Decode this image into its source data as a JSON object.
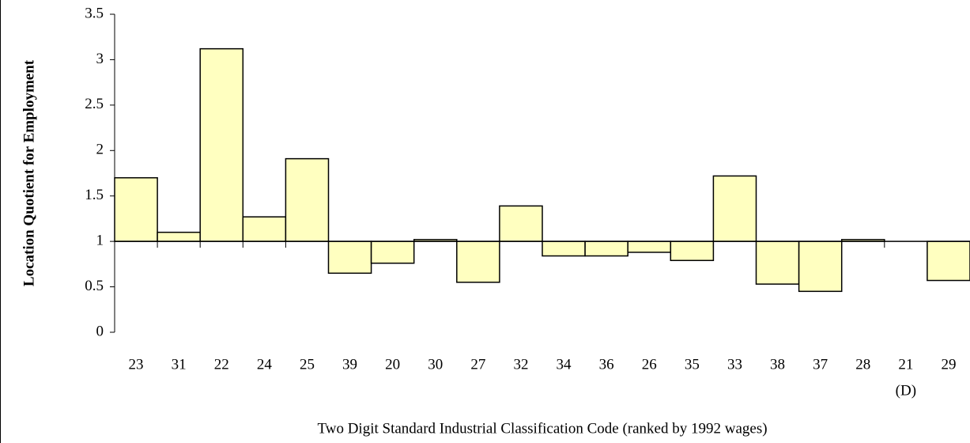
{
  "chart_data": {
    "type": "bar",
    "x_label": "Two Digit Standard Industrial Classification Code (ranked by 1992 wages)",
    "y_label": "Location Quotient for Employment",
    "categories": [
      "23",
      "31",
      "22",
      "24",
      "25",
      "39",
      "20",
      "30",
      "27",
      "32",
      "34",
      "36",
      "26",
      "35",
      "33",
      "38",
      "37",
      "28",
      "21",
      "29"
    ],
    "category_notes": [
      null,
      null,
      null,
      null,
      null,
      null,
      null,
      null,
      null,
      null,
      null,
      null,
      null,
      null,
      null,
      null,
      null,
      null,
      "(D)",
      null
    ],
    "values": [
      1.7,
      1.1,
      3.12,
      1.27,
      1.91,
      0.65,
      0.76,
      1.02,
      0.55,
      1.39,
      0.84,
      0.84,
      0.88,
      0.79,
      1.72,
      0.53,
      0.45,
      1.02,
      null,
      0.57
    ],
    "baseline": 1,
    "color": "#ffffc0",
    "ylim": [
      0,
      3.5
    ],
    "yticks": [
      0,
      0.5,
      1,
      1.5,
      2,
      2.5,
      3,
      3.5
    ]
  }
}
